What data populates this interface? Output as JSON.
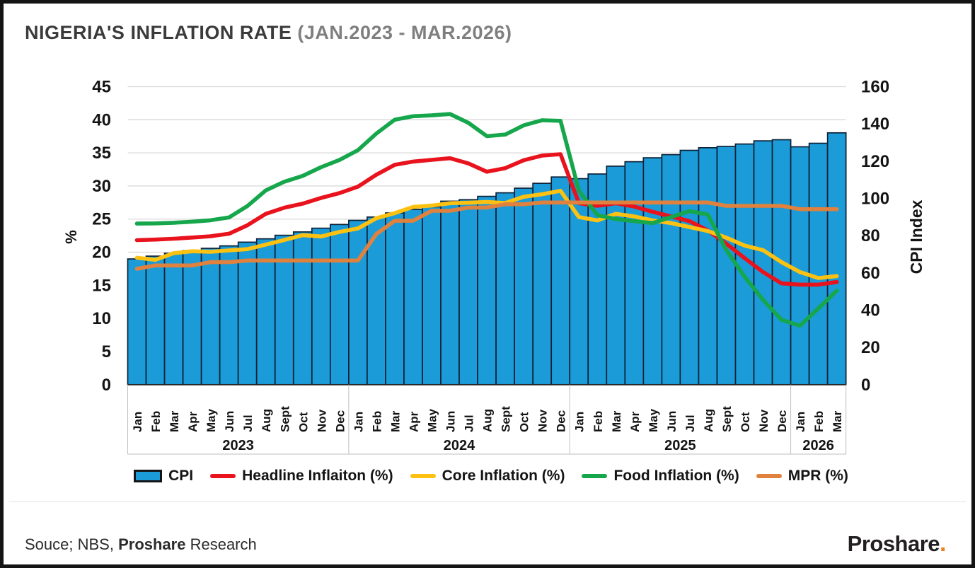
{
  "title": {
    "main": "NIGERIA'S INFLATION RATE",
    "period": " (JAN.2023 - MAR.2026)"
  },
  "legend": [
    {
      "label": "CPI",
      "type": "bar",
      "color": "#1b9cd8"
    },
    {
      "label": "Headline Inflaiton (%)",
      "type": "line",
      "color": "#e8131d"
    },
    {
      "label": "Core Inflation (%)",
      "type": "line",
      "color": "#fdc112"
    },
    {
      "label": "Food Inflation (%)",
      "type": "line",
      "color": "#16a64c"
    },
    {
      "label": "MPR (%)",
      "type": "line",
      "color": "#e0813e"
    }
  ],
  "footer": {
    "source_prefix": "Souce; NBS, ",
    "source_brand": "Proshare",
    "source_suffix": " Research",
    "logo_text": "Proshare",
    "logo_dot": "."
  },
  "chart_data": {
    "type": "combo bar+line, dual axis",
    "grid": true,
    "years": [
      {
        "label": "2023",
        "months": 12
      },
      {
        "label": "2024",
        "months": 12
      },
      {
        "label": "2025",
        "months": 12
      },
      {
        "label": "2026",
        "months": 3
      }
    ],
    "categories": [
      "Jan",
      "Feb",
      "Mar",
      "Apr",
      "May",
      "Jun",
      "Jul",
      "Aug",
      "Sept",
      "Oct",
      "Nov",
      "Dec",
      "Jan",
      "Feb",
      "Mar",
      "Apr",
      "May",
      "Jun",
      "Jul",
      "Aug",
      "Sept",
      "Oct",
      "Nov",
      "Dec",
      "Jan",
      "Feb",
      "Mar",
      "Apr",
      "May",
      "Jun",
      "Jul",
      "Aug",
      "Sept",
      "Oct",
      "Nov",
      "Dec",
      "Jan",
      "Feb",
      "Mar"
    ],
    "left_axis": {
      "label": "%",
      "min": 0,
      "max": 45,
      "step": 5
    },
    "right_axis": {
      "label": "CPI Index",
      "min": 0,
      "max": 160,
      "step": 20
    },
    "series": [
      {
        "name": "CPI",
        "type": "bar",
        "axis": "right",
        "color": "#1b9cd8",
        "border": "#0d2137",
        "values": [
          67.5,
          69,
          70.5,
          72,
          73.2,
          74.5,
          76.5,
          78.3,
          80.2,
          82,
          84,
          86,
          88.2,
          90,
          92.2,
          94.1,
          95.5,
          98.5,
          99.3,
          101.1,
          103,
          105.5,
          108.1,
          111.5,
          110.6,
          113.1,
          117.3,
          119.7,
          121.8,
          123.5,
          125.8,
          127.2,
          127.9,
          129.2,
          130.9,
          131.5,
          127.7,
          129.6,
          135.2
        ]
      },
      {
        "name": "Headline Inflaiton (%)",
        "type": "line",
        "axis": "left",
        "color": "#e8131d",
        "values": [
          21.82,
          21.91,
          22.04,
          22.22,
          22.41,
          22.79,
          24.08,
          25.8,
          26.72,
          27.33,
          28.2,
          28.92,
          29.9,
          31.7,
          33.2,
          33.69,
          33.95,
          34.19,
          33.4,
          32.15,
          32.7,
          33.88,
          34.6,
          34.8,
          27.4,
          27.0,
          27.4,
          26.9,
          26.1,
          25.4,
          24.7,
          23.3,
          21.3,
          19.1,
          17.0,
          15.3,
          15.1,
          15.1,
          15.5
        ]
      },
      {
        "name": "Core Inflation (%)",
        "type": "line",
        "axis": "left",
        "color": "#fdc112",
        "values": [
          19.16,
          18.84,
          19.86,
          20.14,
          20.06,
          20.27,
          20.47,
          21.15,
          21.84,
          22.58,
          22.38,
          23.06,
          23.59,
          25.13,
          25.9,
          26.84,
          27.04,
          27.4,
          27.47,
          27.58,
          27.43,
          28.37,
          28.75,
          29.28,
          25.3,
          24.8,
          25.8,
          25.4,
          24.8,
          24.4,
          23.8,
          23.2,
          22.2,
          21.0,
          20.3,
          18.5,
          17.0,
          16.1,
          16.4
        ]
      },
      {
        "name": "Food Inflation (%)",
        "type": "line",
        "axis": "left",
        "color": "#16a64c",
        "values": [
          24.32,
          24.35,
          24.45,
          24.61,
          24.82,
          25.25,
          26.98,
          29.34,
          30.64,
          31.52,
          32.84,
          33.93,
          35.41,
          37.92,
          40.01,
          40.53,
          40.66,
          40.87,
          39.53,
          37.52,
          37.77,
          39.16,
          39.93,
          39.84,
          29.3,
          25.6,
          25.0,
          24.7,
          24.4,
          25.3,
          26.2,
          25.7,
          20.3,
          16.3,
          12.8,
          9.8,
          8.9,
          11.5,
          14.2
        ]
      },
      {
        "name": "MPR (%)",
        "type": "line",
        "axis": "left",
        "color": "#e0813e",
        "values": [
          17.5,
          18,
          18,
          18,
          18.5,
          18.5,
          18.75,
          18.75,
          18.75,
          18.75,
          18.75,
          18.75,
          18.75,
          22.75,
          24.75,
          24.75,
          26.25,
          26.25,
          26.75,
          26.75,
          27.25,
          27.25,
          27.5,
          27.5,
          27.5,
          27.5,
          27.5,
          27.5,
          27.5,
          27.5,
          27.5,
          27.5,
          27,
          27,
          27,
          27,
          26.5,
          26.5,
          26.5
        ]
      }
    ]
  }
}
